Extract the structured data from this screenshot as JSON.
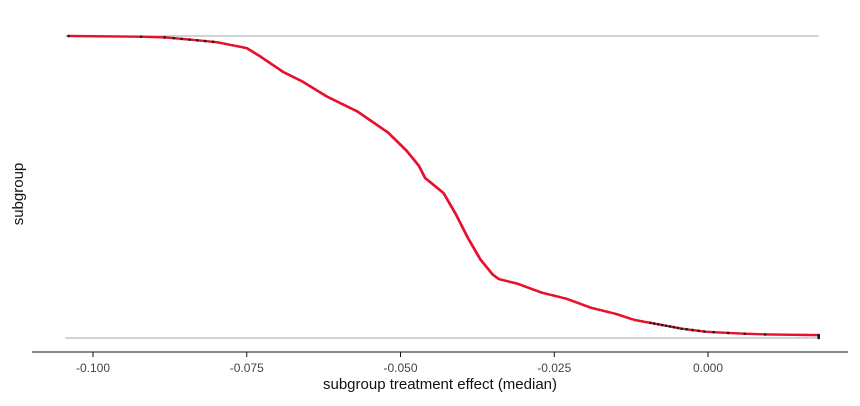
{
  "chart_data": {
    "type": "scatter",
    "title": "",
    "xlabel": "subgroup treatment effect (median)",
    "ylabel": "subgroup",
    "xlim": [
      -0.1045,
      0.018
    ],
    "x_ticks": [
      {
        "value": -0.1,
        "label": "-0.100"
      },
      {
        "value": -0.075,
        "label": "-0.075"
      },
      {
        "value": -0.05,
        "label": "-0.050"
      },
      {
        "value": -0.025,
        "label": "-0.025"
      },
      {
        "value": 0.0,
        "label": "0.000"
      }
    ],
    "y_tick_labels": "none",
    "grid": false,
    "legend": "none",
    "colors": {
      "interval_line": "#888888",
      "point_dark": "#1a1a1a",
      "point_red": "#e8112d",
      "axis": "#111111"
    },
    "curve": {
      "description_points": [
        {
          "x": -0.104,
          "rank": 0.0
        },
        {
          "x": -0.096,
          "rank": 0.0
        },
        {
          "x": -0.088,
          "rank": 0.005
        },
        {
          "x": -0.08,
          "rank": 0.02
        },
        {
          "x": -0.075,
          "rank": 0.04
        },
        {
          "x": -0.073,
          "rank": 0.065
        },
        {
          "x": -0.069,
          "rank": 0.12
        },
        {
          "x": -0.066,
          "rank": 0.15
        },
        {
          "x": -0.062,
          "rank": 0.2
        },
        {
          "x": -0.057,
          "rank": 0.25
        },
        {
          "x": -0.052,
          "rank": 0.32
        },
        {
          "x": -0.049,
          "rank": 0.38
        },
        {
          "x": -0.047,
          "rank": 0.43
        },
        {
          "x": -0.046,
          "rank": 0.47
        },
        {
          "x": -0.043,
          "rank": 0.52
        },
        {
          "x": -0.041,
          "rank": 0.59
        },
        {
          "x": -0.039,
          "rank": 0.67
        },
        {
          "x": -0.037,
          "rank": 0.74
        },
        {
          "x": -0.035,
          "rank": 0.79
        },
        {
          "x": -0.034,
          "rank": 0.805
        },
        {
          "x": -0.031,
          "rank": 0.82
        },
        {
          "x": -0.027,
          "rank": 0.85
        },
        {
          "x": -0.023,
          "rank": 0.87
        },
        {
          "x": -0.019,
          "rank": 0.9
        },
        {
          "x": -0.015,
          "rank": 0.92
        },
        {
          "x": -0.012,
          "rank": 0.94
        },
        {
          "x": -0.008,
          "rank": 0.955
        },
        {
          "x": -0.004,
          "rank": 0.97
        },
        {
          "x": 0.0,
          "rank": 0.98
        },
        {
          "x": 0.005,
          "rank": 0.985
        },
        {
          "x": 0.012,
          "rank": 0.99
        },
        {
          "x": 0.018,
          "rank": 0.99
        }
      ],
      "dark_x_ranges": [
        [
          -0.097,
          -0.088
        ],
        [
          -0.003,
          0.009
        ]
      ],
      "red_x_range": [
        -0.08,
        -0.01
      ],
      "interval_x_range": [
        -0.1045,
        0.018
      ]
    }
  }
}
